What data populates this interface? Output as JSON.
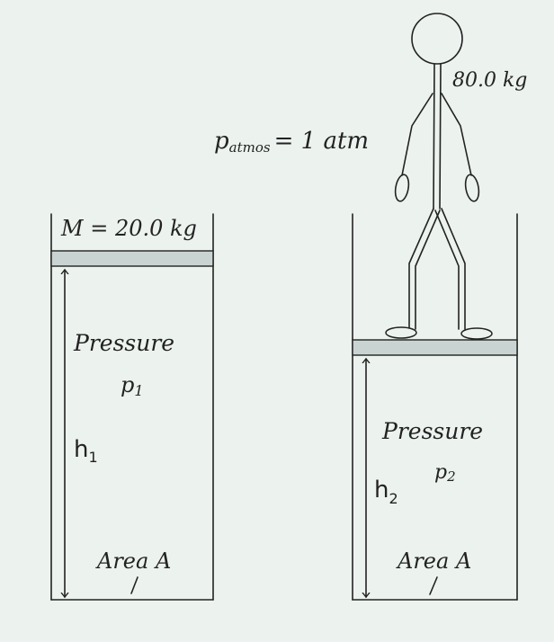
{
  "person": {
    "mass_label": "80.0 kg"
  },
  "atmosphere": {
    "pressure_label": "p",
    "pressure_subscript": "atmos",
    "pressure_value": "= 1 atm"
  },
  "left_cylinder": {
    "mass_label": "M = 20.0 kg",
    "pressure_label": "Pressure",
    "pressure_symbol": "p",
    "pressure_index": "1",
    "height_symbol": "h",
    "height_index": "1",
    "area_label": "Area A"
  },
  "right_cylinder": {
    "pressure_label": "Pressure",
    "pressure_symbol": "p",
    "pressure_index": "2",
    "height_symbol": "h",
    "height_index": "2",
    "area_label": "Area A"
  },
  "colors": {
    "background": "#ecf2ee",
    "ink": "#222222",
    "piston_fill": "#c9d4d2"
  }
}
